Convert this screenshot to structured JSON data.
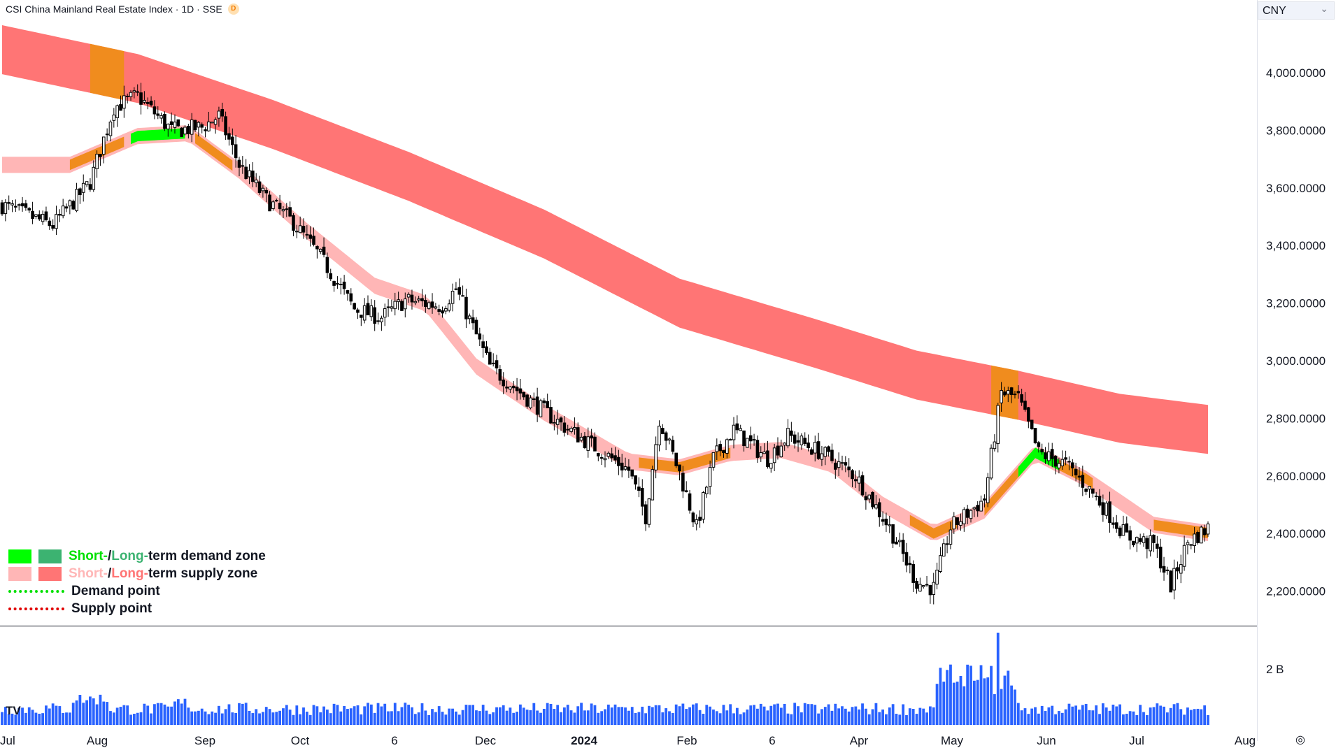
{
  "header": {
    "title": "CSI China Mainland Real Estate Index · 1D · SSE",
    "badge": "D"
  },
  "currency": "CNY",
  "legend": {
    "row1": {
      "short": "Short-",
      "mid": " / ",
      "long": "Long-",
      "rest": "term demand zone"
    },
    "row2": {
      "short": "Short-",
      "mid": " / ",
      "long": "Long-",
      "rest": "term supply zone"
    },
    "row3": "Demand point",
    "row4": "Supply point"
  },
  "colors": {
    "short_demand": "#00ff00",
    "long_demand": "#3cb371",
    "short_supply": "#ffb6b6",
    "long_supply": "#ff7575",
    "mixed_zone": "#f08c1e",
    "demand_point": "#00e000",
    "supply_point": "#e00000",
    "volume": "#2962ff",
    "candle": "#000000"
  },
  "footer": {
    "logo": "TV",
    "target_icon": "target-icon"
  },
  "chart_data": {
    "type": "candlestick",
    "title": "CSI China Mainland Real Estate Index",
    "interval": "1D",
    "exchange": "SSE",
    "y_axis": {
      "ticks": [
        "4,000.0000",
        "3,800.0000",
        "3,600.0000",
        "3,400.0000",
        "3,200.0000",
        "3,000.0000",
        "2,800.0000",
        "2,600.0000",
        "2,400.0000",
        "2,200.0000"
      ],
      "range": [
        2100,
        4250
      ]
    },
    "x_axis": {
      "ticks": [
        "Jul",
        "Aug",
        "Sep",
        "Oct",
        "6",
        "Dec",
        "2024",
        "Feb",
        "6",
        "Apr",
        "May",
        "Jun",
        "Jul",
        "Aug"
      ]
    },
    "volume_axis": {
      "ticks": [
        "2 B"
      ],
      "range": [
        0,
        3.3
      ]
    },
    "price_path": [
      [
        0,
        3540
      ],
      [
        15,
        3470
      ],
      [
        26,
        3620
      ],
      [
        33,
        3880
      ],
      [
        40,
        3920
      ],
      [
        50,
        3800
      ],
      [
        59,
        3810
      ],
      [
        64,
        3850
      ],
      [
        70,
        3680
      ],
      [
        78,
        3560
      ],
      [
        86,
        3480
      ],
      [
        94,
        3360
      ],
      [
        104,
        3180
      ],
      [
        112,
        3150
      ],
      [
        119,
        3210
      ],
      [
        130,
        3190
      ],
      [
        134,
        3250
      ],
      [
        144,
        2980
      ],
      [
        155,
        2870
      ],
      [
        165,
        2780
      ],
      [
        175,
        2700
      ],
      [
        185,
        2620
      ],
      [
        190,
        2460
      ],
      [
        194,
        2800
      ],
      [
        200,
        2610
      ],
      [
        205,
        2420
      ],
      [
        210,
        2660
      ],
      [
        216,
        2760
      ],
      [
        226,
        2660
      ],
      [
        232,
        2740
      ],
      [
        242,
        2680
      ],
      [
        252,
        2600
      ],
      [
        262,
        2420
      ],
      [
        270,
        2230
      ],
      [
        275,
        2210
      ],
      [
        280,
        2420
      ],
      [
        290,
        2520
      ],
      [
        295,
        2890
      ],
      [
        300,
        2870
      ],
      [
        306,
        2680
      ],
      [
        314,
        2640
      ],
      [
        322,
        2540
      ],
      [
        332,
        2390
      ],
      [
        340,
        2360
      ],
      [
        345,
        2220
      ],
      [
        350,
        2370
      ],
      [
        356,
        2420
      ]
    ],
    "volume_bars": 357,
    "bands": {
      "long_term_supply": {
        "center": [
          [
            0,
            4080
          ],
          [
            40,
            3980
          ],
          [
            80,
            3820
          ],
          [
            120,
            3640
          ],
          [
            160,
            3440
          ],
          [
            200,
            3200
          ],
          [
            240,
            3060
          ],
          [
            270,
            2950
          ],
          [
            300,
            2880
          ],
          [
            330,
            2800
          ],
          [
            357,
            2760
          ]
        ],
        "half_width": 85
      },
      "short_term_supply": {
        "center": [
          [
            0,
            3680
          ],
          [
            20,
            3680
          ],
          [
            40,
            3780
          ],
          [
            55,
            3790
          ],
          [
            70,
            3660
          ],
          [
            90,
            3450
          ],
          [
            110,
            3260
          ],
          [
            125,
            3200
          ],
          [
            140,
            2980
          ],
          [
            160,
            2820
          ],
          [
            185,
            2650
          ],
          [
            200,
            2630
          ],
          [
            215,
            2680
          ],
          [
            230,
            2690
          ],
          [
            245,
            2640
          ],
          [
            260,
            2500
          ],
          [
            275,
            2400
          ],
          [
            290,
            2480
          ],
          [
            305,
            2680
          ],
          [
            320,
            2590
          ],
          [
            340,
            2430
          ],
          [
            357,
            2400
          ]
        ],
        "half_width": 28
      }
    }
  }
}
